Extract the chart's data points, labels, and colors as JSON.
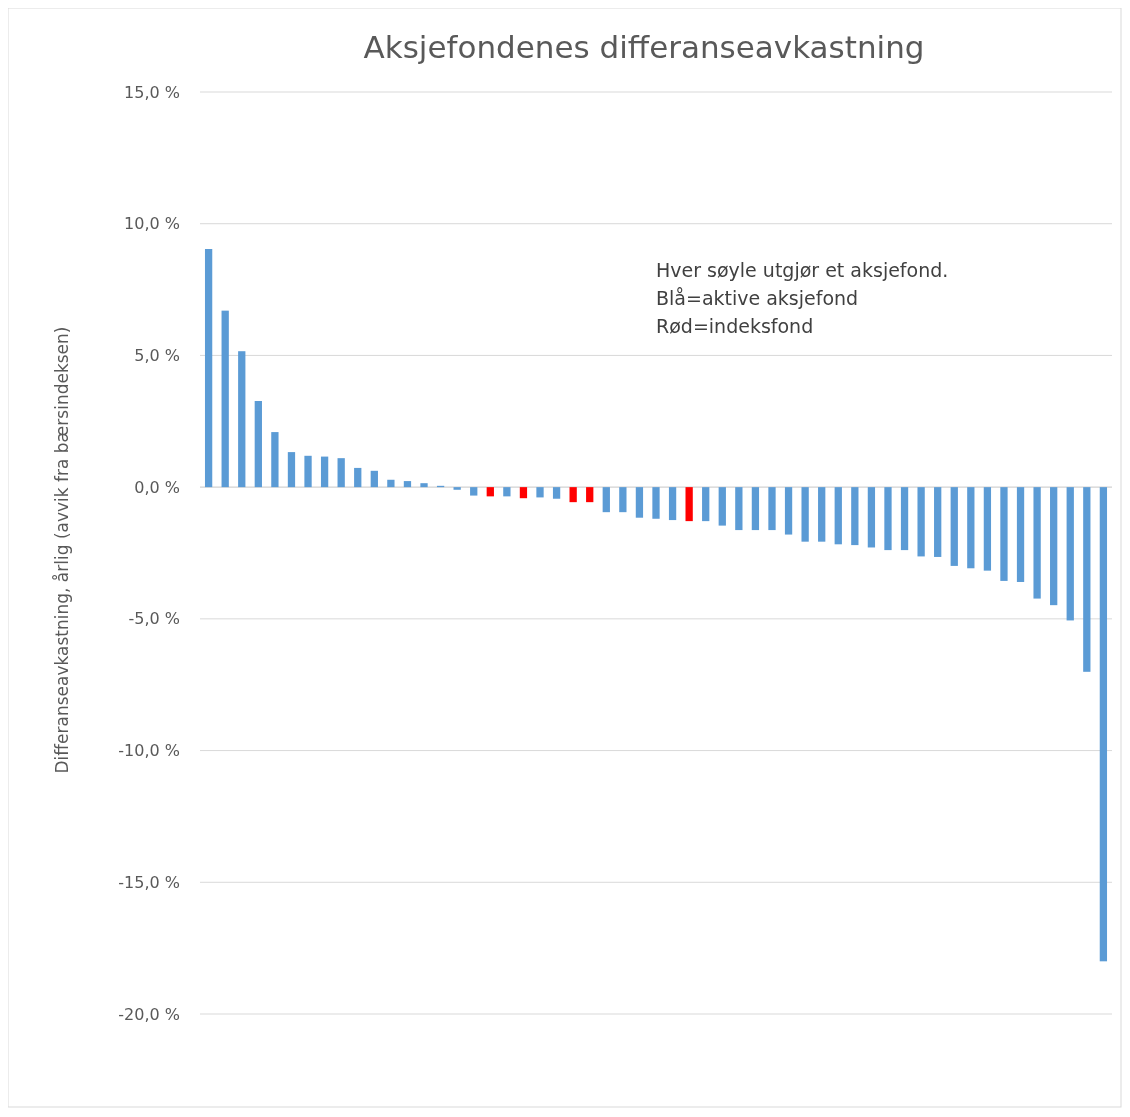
{
  "chart_data": {
    "type": "bar",
    "title": "Aksjefondenes differanseavkastning",
    "ylabel": "Differanseavkastning, årlig (avvik fra bærsindeksen)",
    "categories": [
      null,
      null,
      null,
      null,
      null,
      null,
      null,
      null,
      null,
      null,
      null,
      null,
      null,
      null,
      null,
      null,
      null,
      null,
      null,
      null,
      null,
      null,
      null,
      null,
      null,
      null,
      null,
      null,
      null,
      null,
      null,
      null,
      null,
      null,
      null,
      null,
      null,
      null,
      null,
      null,
      null,
      null,
      null,
      null,
      null,
      null,
      null,
      null,
      null,
      null,
      null,
      null,
      null,
      null,
      null
    ],
    "values": [
      9.04,
      6.7,
      5.16,
      3.27,
      2.09,
      1.33,
      1.19,
      1.16,
      1.1,
      0.73,
      0.62,
      0.28,
      0.23,
      0.15,
      0.05,
      -0.1,
      -0.32,
      -0.35,
      -0.35,
      -0.42,
      -0.39,
      -0.44,
      -0.57,
      -0.57,
      -0.95,
      -0.95,
      -1.16,
      -1.2,
      -1.25,
      -1.29,
      -1.29,
      -1.46,
      -1.63,
      -1.63,
      -1.63,
      -1.8,
      -2.07,
      -2.07,
      -2.17,
      -2.2,
      -2.29,
      -2.39,
      -2.39,
      -2.63,
      -2.65,
      -2.99,
      -3.08,
      -3.17,
      -3.56,
      -3.6,
      -4.23,
      -4.48,
      -5.06,
      -7.01,
      -18.0
    ],
    "colors": [
      "#5b9bd5",
      "#5b9bd5",
      "#5b9bd5",
      "#5b9bd5",
      "#5b9bd5",
      "#5b9bd5",
      "#5b9bd5",
      "#5b9bd5",
      "#5b9bd5",
      "#5b9bd5",
      "#5b9bd5",
      "#5b9bd5",
      "#5b9bd5",
      "#5b9bd5",
      "#5b9bd5",
      "#5b9bd5",
      "#5b9bd5",
      "#ff0000",
      "#5b9bd5",
      "#ff0000",
      "#5b9bd5",
      "#5b9bd5",
      "#ff0000",
      "#ff0000",
      "#5b9bd5",
      "#5b9bd5",
      "#5b9bd5",
      "#5b9bd5",
      "#5b9bd5",
      "#ff0000",
      "#5b9bd5",
      "#5b9bd5",
      "#5b9bd5",
      "#5b9bd5",
      "#5b9bd5",
      "#5b9bd5",
      "#5b9bd5",
      "#5b9bd5",
      "#5b9bd5",
      "#5b9bd5",
      "#5b9bd5",
      "#5b9bd5",
      "#5b9bd5",
      "#5b9bd5",
      "#5b9bd5",
      "#5b9bd5",
      "#5b9bd5",
      "#5b9bd5",
      "#5b9bd5",
      "#5b9bd5",
      "#5b9bd5",
      "#5b9bd5",
      "#5b9bd5",
      "#5b9bd5",
      "#5b9bd5"
    ],
    "ylim": [
      -20,
      15
    ],
    "yticks": [
      {
        "value": 15,
        "label": "15,0 %"
      },
      {
        "value": 10,
        "label": "10,0 %"
      },
      {
        "value": 5,
        "label": "5,0 %"
      },
      {
        "value": 0,
        "label": "0,0 %"
      },
      {
        "value": -5,
        "label": "-5,0 %"
      },
      {
        "value": -10,
        "label": "-10,0 %"
      },
      {
        "value": -15,
        "label": "-15,0 %"
      },
      {
        "value": -20,
        "label": "-20,0 %"
      }
    ],
    "grid": "y",
    "annotations": [
      "Hver søyle utgjør et aksjefond.",
      "Blå=aktive aksjefond",
      "Rød=indeksfond"
    ]
  }
}
